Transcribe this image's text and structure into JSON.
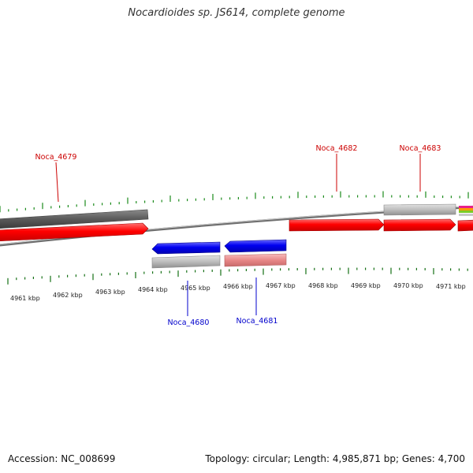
{
  "title": "Nocardioides sp. JS614, complete genome",
  "footer": {
    "accession": "Accession: NC_008699",
    "topology": "Topology: circular; Length: 4,985,871 bp; Genes: 4,700"
  },
  "colors": {
    "forward_cds": "#ff0000",
    "reverse_cds": "#0000ee",
    "forward_label": "#cc0000",
    "reverse_label": "#0000cc",
    "other_feature": "#b0b0b0",
    "dark_track": "#5a5a5a",
    "forward_tick": "#1a8a1a",
    "reverse_tick": "#157015",
    "backbone": "#777777"
  },
  "kbp_labels": [
    "4961 kbp",
    "4962 kbp",
    "4963 kbp",
    "4964 kbp",
    "4965 kbp",
    "4966 kbp",
    "4967 kbp",
    "4968 kbp",
    "4969 kbp",
    "4970 kbp",
    "4971 kbp"
  ],
  "genes": [
    {
      "id": "Noca_4679",
      "strand": "forward"
    },
    {
      "id": "Noca_4680",
      "strand": "reverse"
    },
    {
      "id": "Noca_4681",
      "strand": "reverse"
    },
    {
      "id": "Noca_4682",
      "strand": "forward"
    },
    {
      "id": "Noca_4683",
      "strand": "forward"
    }
  ]
}
